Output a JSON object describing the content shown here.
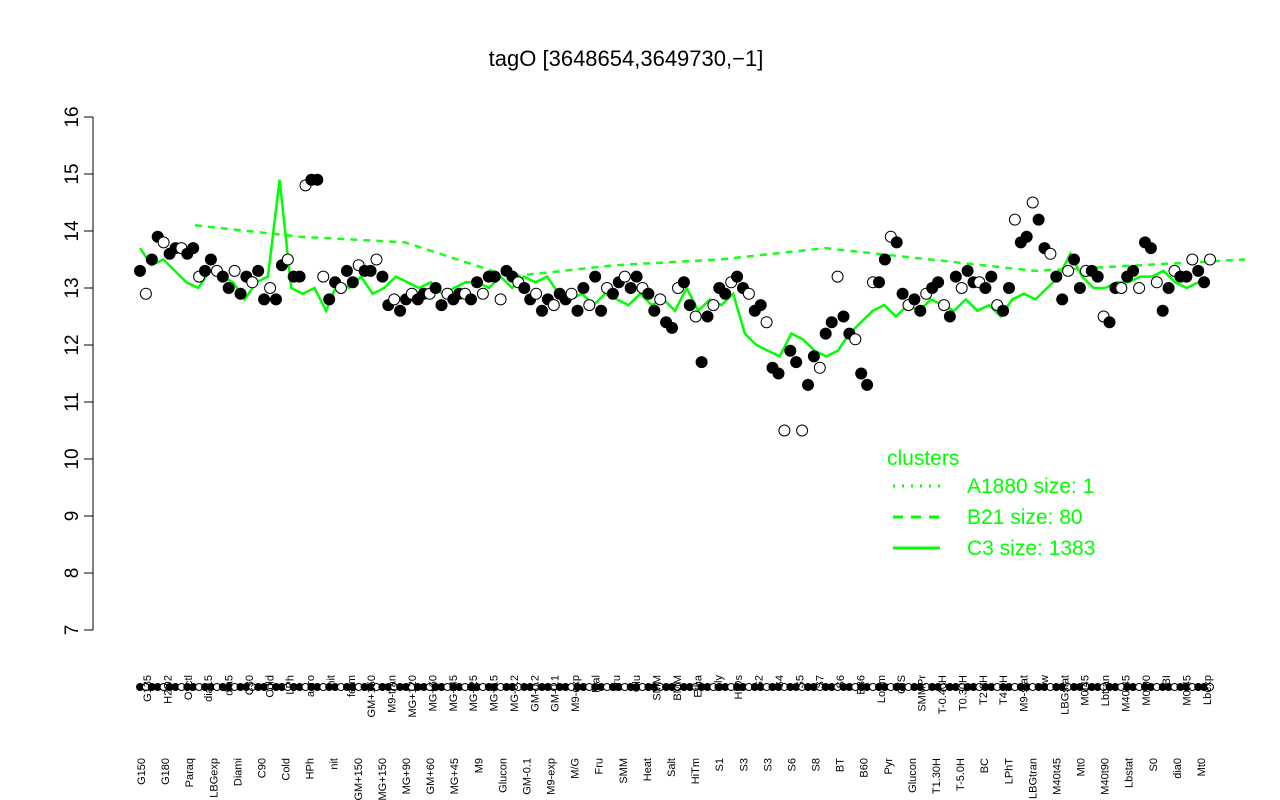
{
  "chart_data": {
    "type": "scatter",
    "title": "tagO [3648654,3649730,−1]",
    "xlabel": "",
    "ylabel": "",
    "ylim": [
      7,
      16
    ],
    "yticks": [
      "7",
      "8",
      "9",
      "10",
      "11",
      "12",
      "13",
      "14",
      "15",
      "16"
    ],
    "grid": false,
    "colors": {
      "points_filled": "#000000",
      "points_open": "#ffffff",
      "cluster_lines": "#00ff00",
      "axis": "#000000"
    },
    "x_labels_top": [
      "G135",
      "H2O2",
      "Oxctl",
      "dia15",
      "dia5",
      "C30",
      "Cold",
      "LPh",
      "aero",
      "nit",
      "ferm",
      "GM+150",
      "M9-tran",
      "MG+120",
      "MG+60",
      "MG+45",
      "MG+25",
      "MG+15",
      "MG-0.2",
      "GM-0.2",
      "GM-0.1",
      "M9-exp",
      "Mal",
      "Fru",
      "Glu",
      "SMM",
      "BMM",
      "Etha",
      "Gly",
      "HiOs",
      "S2",
      "S4",
      "S5",
      "S7",
      "S6",
      "B36",
      "LoTm",
      "G/S",
      "SMMPr",
      "T-0.40H",
      "T0.30H",
      "T2.0H",
      "T4.0H",
      "M9-stat",
      "Sw",
      "LBGstat",
      "M0t45",
      "Lbtran",
      "M40t45",
      "M0t90",
      "BI",
      "M0t45",
      "Lbexp"
    ],
    "x_labels_bottom": [
      "G150",
      "G180",
      "Paraq",
      "LBGexp",
      "Diami",
      "C90",
      "Cold",
      "HPh",
      "nit",
      "GM+150",
      "MG+150",
      "MG+90",
      "GM+60",
      "MG+45",
      "M9",
      "Glucon",
      "GM-0.1",
      "M9-exp",
      "M/G",
      "Fru",
      "SMM",
      "Heat",
      "Salt",
      "HiTm",
      "S1",
      "S3",
      "S3",
      "S6",
      "S8",
      "BT",
      "B60",
      "Pyr",
      "Glucon",
      "T1.30H",
      "T-5.0H",
      "BC",
      "LPhT",
      "LBGtran",
      "M40t45",
      "Mt0",
      "M40t90",
      "Lbstat",
      "S0",
      "dia0",
      "Mt0"
    ],
    "legend": {
      "title": "clusters",
      "position": "bottom-right",
      "entries": [
        {
          "label": "A1880 size: 1",
          "style": "dotted"
        },
        {
          "label": "B21 size: 80",
          "style": "dashed"
        },
        {
          "label": "C3 size: 1383",
          "style": "solid"
        }
      ]
    },
    "series": [
      {
        "name": "points",
        "values": [
          13.3,
          12.9,
          13.5,
          13.9,
          13.8,
          13.6,
          13.7,
          13.7,
          13.6,
          13.7,
          13.2,
          13.3,
          13.5,
          13.3,
          13.2,
          13.0,
          13.3,
          12.9,
          13.2,
          13.1,
          13.3,
          12.8,
          13.0,
          12.8,
          13.4,
          13.5,
          13.2,
          13.2,
          14.8,
          14.9,
          14.9,
          13.2,
          12.8,
          13.1,
          13.0,
          13.3,
          13.1,
          13.4,
          13.3,
          13.3,
          13.5,
          13.2,
          12.7,
          12.8,
          12.6,
          12.8,
          12.9,
          12.8,
          12.9,
          12.9,
          13.0,
          12.7,
          12.9,
          12.8,
          12.9,
          12.9,
          12.8,
          13.1,
          12.9,
          13.2,
          13.2,
          12.8,
          13.3,
          13.2,
          13.1,
          13.0,
          12.8,
          12.9,
          12.6,
          12.8,
          12.7,
          12.9,
          12.8,
          12.9,
          12.6,
          13.0,
          12.7,
          13.2,
          12.6,
          13.0,
          12.9,
          13.1,
          13.2,
          13.0,
          13.2,
          13.0,
          12.9,
          12.6,
          12.8,
          12.4,
          12.3,
          13.0,
          13.1,
          12.7,
          12.5,
          11.7,
          12.5,
          12.7,
          13.0,
          12.9,
          13.1,
          13.2,
          13.0,
          12.9,
          12.6,
          12.7,
          12.4,
          11.6,
          11.5,
          10.5,
          11.9,
          11.7,
          10.5,
          11.3,
          11.8,
          11.6,
          12.2,
          12.4,
          13.2,
          12.5,
          12.2,
          12.1,
          11.5,
          11.3,
          13.1,
          13.1,
          13.5,
          13.9,
          13.8,
          12.9,
          12.7,
          12.8,
          12.6,
          12.9,
          13.0,
          13.1,
          12.7,
          12.5,
          13.2,
          13.0,
          13.3,
          13.1,
          13.1,
          13.0,
          13.2,
          12.7,
          12.6,
          13.0,
          14.2,
          13.8,
          13.9,
          14.5,
          14.2,
          13.7,
          13.6,
          13.2,
          12.8,
          13.3,
          13.5,
          13.0,
          13.3,
          13.3,
          13.2,
          12.5,
          12.4,
          13.0,
          13.0,
          13.2,
          13.3,
          13.0,
          13.8,
          13.7,
          13.1,
          12.6,
          13.0,
          13.3,
          13.2,
          13.2,
          13.5,
          13.3,
          13.1,
          13.5
        ]
      },
      {
        "name": "C3 size: 1383",
        "values": [
          13.7,
          13.4,
          13.5,
          13.3,
          13.1,
          13.0,
          13.3,
          13.2,
          13.1,
          12.8,
          13.1,
          13.2,
          14.9,
          13.0,
          12.9,
          13.0,
          12.6,
          13.1,
          13.0,
          13.2,
          12.9,
          13.0,
          13.2,
          13.1,
          13.0,
          13.1,
          12.9,
          13.0,
          13.1,
          13.1,
          13.0,
          13.2,
          13.0,
          13.2,
          13.1,
          13.2,
          12.9,
          12.8,
          12.9,
          12.7,
          12.9,
          12.8,
          12.7,
          12.9,
          12.7,
          12.8,
          12.6,
          13.0,
          12.6,
          12.8,
          12.7,
          12.9,
          12.2,
          12.0,
          11.9,
          11.8,
          12.2,
          12.1,
          11.9,
          11.8,
          11.9,
          12.2,
          12.4,
          12.6,
          12.7,
          12.5,
          12.7,
          12.6,
          12.8,
          12.7,
          12.6,
          12.8,
          12.6,
          12.7,
          12.5,
          12.8,
          12.9,
          12.8,
          13.0,
          13.2,
          13.6,
          13.2,
          13.0,
          13.0,
          13.1,
          13.1,
          13.2,
          13.2,
          13.3,
          13.1,
          13.0,
          13.1,
          13.1
        ]
      },
      {
        "name": "B21 size: 80",
        "values": [
          14.1,
          13.9,
          13.8,
          13.2,
          13.4,
          13.5,
          13.7,
          13.5,
          13.3,
          13.4,
          13.5
        ]
      }
    ]
  }
}
